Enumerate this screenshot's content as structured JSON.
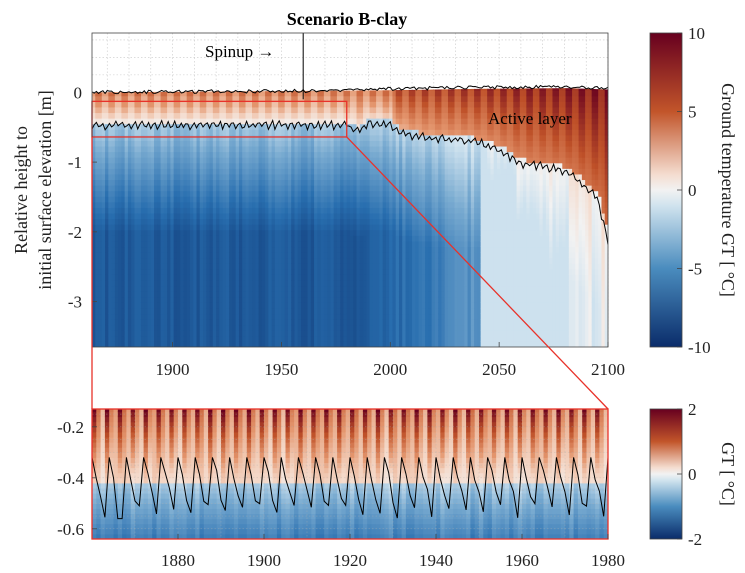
{
  "chart_data": [
    {
      "type": "heatmap",
      "title": "Scenario B-clay",
      "ylabel": [
        "Relative height to",
        "initial surface elevation [m]"
      ],
      "xlim": [
        1863,
        2100
      ],
      "ylim": [
        -3.65,
        0.85
      ],
      "x_ticks": [
        1900,
        1950,
        2000,
        2050,
        2100
      ],
      "y_ticks": [
        0,
        -1,
        -2,
        -3
      ],
      "grid": true,
      "colorbar": {
        "label": "Ground temperature GT [ °C]",
        "range": [
          -10,
          10
        ],
        "ticks": [
          10,
          5,
          0,
          -5,
          -10
        ]
      },
      "annotations": {
        "spinup": "Spinup →",
        "spinup_x": 1960,
        "active_layer": "Active layer"
      },
      "surface": {
        "x": [
          1863,
          1960,
          2000,
          2040,
          2080,
          2100
        ],
        "y": [
          0.0,
          0.02,
          0.03,
          0.05,
          0.06,
          0.04
        ]
      },
      "active_layer_depth": {
        "x": [
          1863,
          1960,
          1980,
          1985,
          1990,
          2000,
          2005,
          2010,
          2020,
          2030,
          2040,
          2050,
          2055,
          2060,
          2070,
          2080,
          2085,
          2090,
          2095,
          2098,
          2100
        ],
        "y": [
          -0.45,
          -0.45,
          -0.45,
          -0.55,
          -0.42,
          -0.45,
          -0.55,
          -0.6,
          -0.65,
          -0.65,
          -0.7,
          -0.8,
          -0.9,
          -1.0,
          -1.05,
          -1.1,
          -1.2,
          -1.35,
          -1.5,
          -1.85,
          -2.15
        ]
      },
      "zoom_box": {
        "x": [
          1863,
          1980
        ],
        "y": [
          -0.64,
          -0.13
        ]
      }
    },
    {
      "type": "heatmap",
      "title": "",
      "ylabel": "",
      "xlim": [
        1860,
        1980
      ],
      "ylim": [
        -0.64,
        -0.13
      ],
      "x_ticks": [
        1880,
        1900,
        1920,
        1940,
        1960,
        1980
      ],
      "y_ticks": [
        -0.2,
        -0.4,
        -0.6
      ],
      "grid": true,
      "colorbar": {
        "label": "GT [ °C]",
        "range": [
          -2,
          2
        ],
        "ticks": [
          2,
          0,
          -2
        ]
      },
      "active_layer_depth_range": [
        -0.56,
        -0.32
      ]
    }
  ]
}
